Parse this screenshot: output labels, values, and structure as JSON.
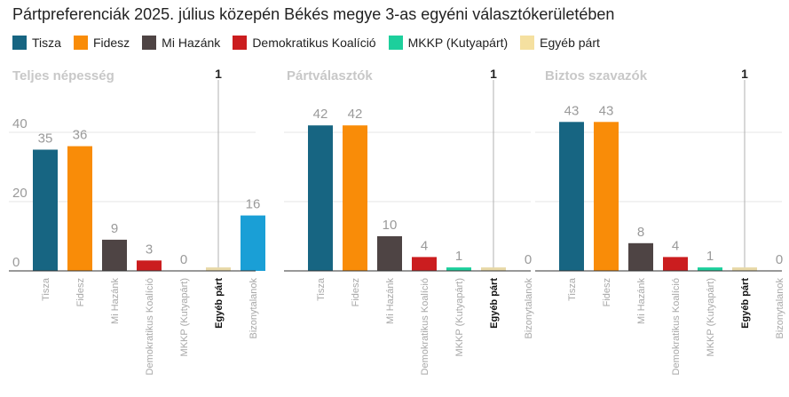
{
  "title": "Pártpreferenciák 2025. július közepén Békés megye 3-as egyéni választókerületében",
  "legend": [
    {
      "name": "Tisza",
      "color": "#176582"
    },
    {
      "name": "Fidesz",
      "color": "#f98c08"
    },
    {
      "name": "Mi Hazánk",
      "color": "#4e4444"
    },
    {
      "name": "Demokratikus Koalíció",
      "color": "#cb1d1f"
    },
    {
      "name": "MKKP (Kutyapárt)",
      "color": "#1dcf9c"
    },
    {
      "name": "Egyéb párt",
      "color": "#f5e0a0"
    }
  ],
  "extra_colors": {
    "Bizonytalanok": "#1a9fd6",
    "Egyéb párt": "#e8d9a8"
  },
  "highlight": {
    "category": "Egyéb párt",
    "label": "1"
  },
  "chart_data": [
    {
      "type": "bar",
      "title": "Teljes népesség",
      "categories": [
        "Tisza",
        "Fidesz",
        "Mi Hazánk",
        "Demokratikus Koalíció",
        "MKKP (Kutyapárt)",
        "Egyéb párt",
        "Bizonytalanok"
      ],
      "values": [
        35,
        36,
        9,
        3,
        0,
        1,
        16
      ],
      "labels": [
        "35",
        "36",
        "9",
        "3",
        "0",
        "",
        "16"
      ],
      "yticks": [
        0,
        20,
        40
      ],
      "ylim": [
        0,
        44
      ]
    },
    {
      "type": "bar",
      "title": "Pártválasztók",
      "categories": [
        "Tisza",
        "Fidesz",
        "Mi Hazánk",
        "Demokratikus Koalíció",
        "MKKP (Kutyapárt)",
        "Egyéb párt",
        "Bizonytalanok"
      ],
      "values": [
        42,
        42,
        10,
        4,
        1,
        1,
        0
      ],
      "labels": [
        "42",
        "42",
        "10",
        "4",
        "1",
        "",
        "0"
      ],
      "yticks": [],
      "ylim": [
        0,
        44
      ]
    },
    {
      "type": "bar",
      "title": "Biztos szavazók",
      "categories": [
        "Tisza",
        "Fidesz",
        "Mi Hazánk",
        "Demokratikus Koalíció",
        "MKKP (Kutyapárt)",
        "Egyéb párt",
        "Bizonytalanok"
      ],
      "values": [
        43,
        43,
        8,
        4,
        1,
        1,
        0
      ],
      "labels": [
        "43",
        "43",
        "8",
        "4",
        "1",
        "",
        "0"
      ],
      "yticks": [],
      "ylim": [
        0,
        44
      ]
    }
  ]
}
